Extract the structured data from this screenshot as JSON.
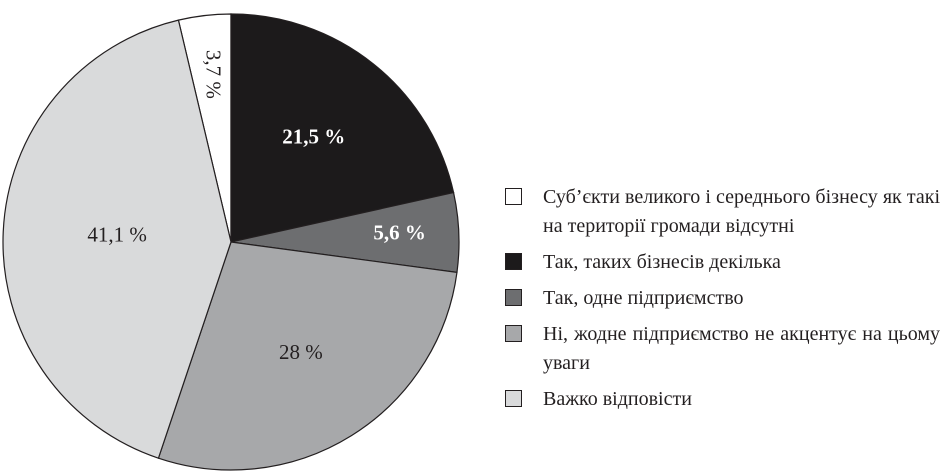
{
  "chart_data": {
    "type": "pie",
    "categories": [
      "Суб’єкти великого і середнього бізнесу як такі на території громади відсутні",
      "Так, таких бізнесів декілька",
      "Так, одне підприємство",
      "Ні, жодне підприємство не акцентує на цьому уваги",
      "Важко відповісти"
    ],
    "values": [
      3.7,
      21.5,
      5.6,
      28,
      41.1
    ],
    "value_labels": [
      "3,7 %",
      "21,5 %",
      "5,6 %",
      "28 %",
      "41,1 %"
    ],
    "colors": [
      "#ffffff",
      "#1c1a1b",
      "#6d6e70",
      "#a7a8aa",
      "#d9dadb"
    ]
  }
}
